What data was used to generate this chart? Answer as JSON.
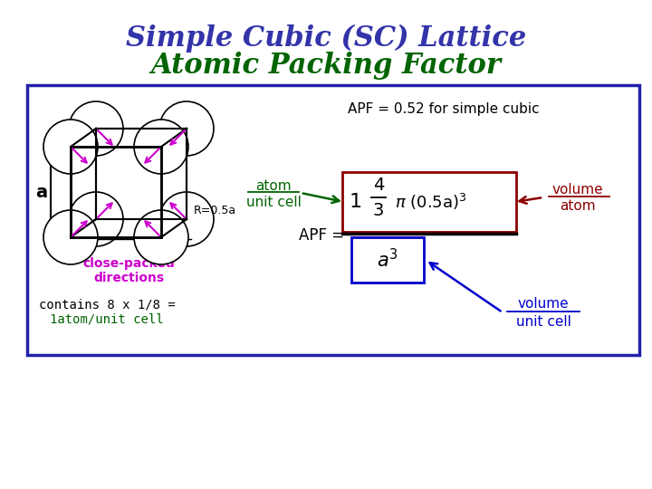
{
  "title_line1": "Simple Cubic (SC) Lattice",
  "title_line2": "Atomic Packing Factor",
  "title_color1": "#3333AA",
  "title_color2": "#006400",
  "bg_color": "#FFFFFF",
  "box_color": "#2222AA",
  "apf_value_text": "APF = 0.52 for simple cubic",
  "close_packed_text1": "close-packed",
  "close_packed_text2": "directions",
  "contains_text1": "contains 8 x 1/8 =",
  "contains_text2": "1atom/unit cell",
  "magenta": "#CC00CC",
  "dark_red": "#8B0000",
  "blue_label": "#0000CC",
  "green_label": "#006400",
  "black": "#000000"
}
